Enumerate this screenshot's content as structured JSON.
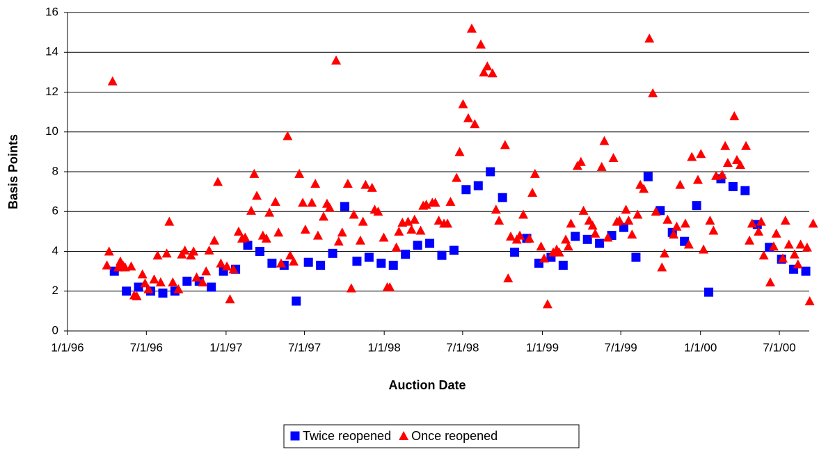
{
  "chart_data": {
    "type": "scatter",
    "x_label": "Auction Date",
    "y_label": "Basis Points",
    "xlim": [
      "1996-01-01",
      "2000-09-08"
    ],
    "xticks": [
      {
        "value": "1996-01-01",
        "label": "1/1/96"
      },
      {
        "value": "1996-07-01",
        "label": "7/1/96"
      },
      {
        "value": "1997-01-01",
        "label": "1/1/97"
      },
      {
        "value": "1997-07-01",
        "label": "7/1/97"
      },
      {
        "value": "1998-01-01",
        "label": "1/1/98"
      },
      {
        "value": "1998-07-01",
        "label": "7/1/98"
      },
      {
        "value": "1999-01-01",
        "label": "1/1/99"
      },
      {
        "value": "1999-07-01",
        "label": "7/1/99"
      },
      {
        "value": "2000-01-01",
        "label": "1/1/00"
      },
      {
        "value": "2000-07-01",
        "label": "7/1/00"
      }
    ],
    "ylim": [
      0,
      16
    ],
    "yticks": [
      0,
      2,
      4,
      6,
      8,
      10,
      12,
      14,
      16
    ],
    "grid": true,
    "legend": "bottom",
    "series": [
      {
        "name": "Twice reopened",
        "color": "#0000ff",
        "marker": "square",
        "x": [
          "1996-04-18",
          "1996-05-16",
          "1996-06-13",
          "1996-07-11",
          "1996-08-08",
          "1996-09-05",
          "1996-10-03",
          "1996-10-31",
          "1996-11-28",
          "1996-12-26",
          "1997-01-23",
          "1997-02-20",
          "1997-03-20",
          "1997-04-17",
          "1997-05-15",
          "1997-06-12",
          "1997-07-10",
          "1997-08-07",
          "1997-09-04",
          "1997-10-02",
          "1997-10-30",
          "1997-11-27",
          "1997-12-25",
          "1998-01-22",
          "1998-02-19",
          "1998-03-19",
          "1998-04-16",
          "1998-05-14",
          "1998-06-11",
          "1998-07-09",
          "1998-08-06",
          "1998-09-03",
          "1998-10-01",
          "1998-10-29",
          "1998-11-26",
          "1998-12-24",
          "1999-01-21",
          "1999-02-18",
          "1999-03-18",
          "1999-04-15",
          "1999-05-13",
          "1999-06-10",
          "1999-07-08",
          "1999-08-05",
          "1999-09-02",
          "1999-09-30",
          "1999-10-28",
          "1999-11-25",
          "1999-12-23",
          "2000-01-20",
          "2000-02-17",
          "2000-03-16",
          "2000-04-13",
          "2000-05-11",
          "2000-06-08",
          "2000-07-06",
          "2000-08-03",
          "2000-08-31"
        ],
        "values": [
          3.0,
          2.0,
          2.2,
          2.0,
          1.9,
          2.0,
          2.5,
          2.5,
          2.2,
          3.0,
          3.1,
          4.3,
          4.0,
          3.4,
          3.3,
          1.5,
          3.45,
          3.3,
          3.9,
          6.25,
          3.5,
          3.7,
          3.4,
          3.3,
          3.85,
          4.3,
          4.4,
          3.8,
          4.05,
          7.1,
          7.3,
          8.0,
          6.7,
          3.95,
          4.65,
          3.4,
          3.7,
          3.3,
          4.75,
          4.6,
          4.4,
          4.8,
          5.2,
          3.7,
          7.75,
          6.05,
          4.95,
          4.5,
          6.3,
          1.95,
          7.65,
          7.25,
          7.05,
          5.35,
          4.2,
          3.6,
          3.1,
          3.0
        ]
      },
      {
        "name": "Once reopened",
        "color": "#ff0000",
        "marker": "triangle",
        "x": [
          "1996-04-01",
          "1996-04-06",
          "1996-04-14",
          "1996-04-27",
          "1996-05-02",
          "1996-05-08",
          "1996-05-13",
          "1996-05-27",
          "1996-06-03",
          "1996-06-09",
          "1996-06-22",
          "1996-06-28",
          "1996-07-06",
          "1996-07-19",
          "1996-07-27",
          "1996-08-03",
          "1996-08-17",
          "1996-08-23",
          "1996-08-31",
          "1996-09-13",
          "1996-09-21",
          "1996-09-28",
          "1996-10-12",
          "1996-10-18",
          "1996-10-25",
          "1996-11-08",
          "1996-11-16",
          "1996-11-23",
          "1996-12-05",
          "1996-12-13",
          "1996-12-20",
          "1997-01-03",
          "1997-01-10",
          "1997-01-18",
          "1997-01-30",
          "1997-02-07",
          "1997-02-14",
          "1997-02-28",
          "1997-03-07",
          "1997-03-13",
          "1997-03-27",
          "1997-04-04",
          "1997-04-11",
          "1997-04-25",
          "1997-05-02",
          "1997-05-08",
          "1997-05-23",
          "1997-05-29",
          "1997-06-06",
          "1997-06-19",
          "1997-06-27",
          "1997-07-03",
          "1997-07-18",
          "1997-07-26",
          "1997-08-01",
          "1997-08-14",
          "1997-08-22",
          "1997-08-28",
          "1997-09-12",
          "1997-09-18",
          "1997-09-26",
          "1997-10-09",
          "1997-10-17",
          "1997-10-23",
          "1997-11-07",
          "1997-11-13",
          "1997-11-19",
          "1997-12-04",
          "1997-12-10",
          "1997-12-18",
          "1997-12-31",
          "1998-01-08",
          "1998-01-14",
          "1998-01-29",
          "1998-02-04",
          "1998-02-12",
          "1998-02-25",
          "1998-03-05",
          "1998-03-12",
          "1998-03-26",
          "1998-04-01",
          "1998-04-08",
          "1998-04-22",
          "1998-04-29",
          "1998-05-07",
          "1998-05-19",
          "1998-05-27",
          "1998-06-03",
          "1998-06-17",
          "1998-06-24",
          "1998-07-02",
          "1998-07-14",
          "1998-07-22",
          "1998-07-29",
          "1998-08-12",
          "1998-08-19",
          "1998-08-27",
          "1998-09-08",
          "1998-09-16",
          "1998-09-23",
          "1998-10-07",
          "1998-10-14",
          "1998-10-20",
          "1998-11-03",
          "1998-11-10",
          "1998-11-18",
          "1998-12-02",
          "1998-12-09",
          "1998-12-15",
          "1998-12-29",
          "1999-01-05",
          "1999-01-13",
          "1999-01-26",
          "1999-02-03",
          "1999-02-09",
          "1999-02-24",
          "1999-03-02",
          "1999-03-08",
          "1999-03-23",
          "1999-03-31",
          "1999-04-06",
          "1999-04-19",
          "1999-04-27",
          "1999-05-03",
          "1999-05-18",
          "1999-05-24",
          "1999-06-01",
          "1999-06-14",
          "1999-06-22",
          "1999-06-28",
          "1999-07-13",
          "1999-07-19",
          "1999-07-27",
          "1999-08-09",
          "1999-08-15",
          "1999-08-23",
          "1999-09-05",
          "1999-09-13",
          "1999-09-20",
          "1999-10-04",
          "1999-10-10",
          "1999-10-17",
          "1999-10-31",
          "1999-11-07",
          "1999-11-15",
          "1999-11-27",
          "1999-12-05",
          "1999-12-12",
          "1999-12-26",
          "2000-01-02",
          "2000-01-08",
          "2000-01-23",
          "2000-01-31",
          "2000-02-06",
          "2000-02-20",
          "2000-02-27",
          "2000-03-04",
          "2000-03-19",
          "2000-03-25",
          "2000-04-02",
          "2000-04-15",
          "2000-04-23",
          "2000-04-29",
          "2000-05-14",
          "2000-05-20",
          "2000-05-26",
          "2000-06-10",
          "2000-06-18",
          "2000-06-24",
          "2000-07-09",
          "2000-07-15",
          "2000-07-23",
          "2000-08-05",
          "2000-08-13",
          "2000-08-19",
          "2000-09-03",
          "2000-09-09",
          "2000-09-17"
        ],
        "values": [
          3.3,
          4.0,
          12.55,
          3.2,
          3.5,
          3.3,
          3.2,
          3.25,
          1.8,
          1.75,
          2.85,
          2.4,
          2.1,
          2.6,
          3.8,
          2.45,
          3.9,
          5.5,
          2.45,
          2.1,
          3.85,
          4.05,
          3.8,
          4.0,
          2.7,
          2.45,
          3.0,
          4.05,
          4.55,
          7.5,
          3.4,
          3.25,
          1.6,
          3.1,
          5.0,
          4.65,
          4.7,
          6.05,
          7.9,
          6.8,
          4.8,
          4.65,
          5.95,
          6.5,
          4.95,
          3.4,
          9.8,
          3.8,
          3.5,
          7.9,
          6.45,
          5.1,
          6.45,
          7.4,
          4.8,
          5.75,
          6.4,
          6.2,
          13.6,
          4.5,
          4.95,
          7.4,
          2.15,
          5.85,
          4.55,
          5.5,
          7.35,
          7.2,
          6.1,
          6.0,
          4.7,
          2.2,
          2.2,
          4.2,
          5.0,
          5.45,
          5.5,
          5.1,
          5.6,
          5.05,
          6.3,
          6.35,
          6.45,
          6.45,
          5.55,
          5.4,
          5.4,
          6.5,
          7.7,
          9.0,
          11.4,
          10.7,
          15.2,
          10.4,
          14.4,
          13.0,
          13.3,
          12.95,
          6.1,
          5.55,
          9.35,
          2.65,
          4.75,
          4.6,
          4.8,
          5.85,
          4.65,
          6.95,
          7.9,
          4.25,
          3.65,
          1.35,
          3.95,
          4.1,
          3.95,
          4.6,
          4.25,
          5.4,
          8.3,
          8.5,
          6.05,
          5.55,
          5.3,
          4.9,
          8.25,
          9.55,
          4.7,
          8.7,
          5.5,
          5.55,
          6.1,
          5.55,
          4.85,
          5.85,
          7.35,
          7.15,
          14.7,
          11.95,
          6.0,
          3.2,
          3.9,
          5.6,
          4.85,
          5.25,
          7.35,
          5.4,
          4.35,
          8.75,
          7.6,
          8.9,
          4.1,
          5.55,
          5.05,
          7.8,
          7.85,
          9.3,
          8.45,
          10.8,
          8.6,
          8.35,
          9.3,
          4.55,
          5.4,
          5.0,
          5.5,
          3.8,
          2.45,
          4.25,
          4.9,
          3.65,
          5.55,
          4.35,
          3.85,
          3.35,
          4.35,
          4.2,
          1.5,
          5.4
        ]
      }
    ]
  }
}
